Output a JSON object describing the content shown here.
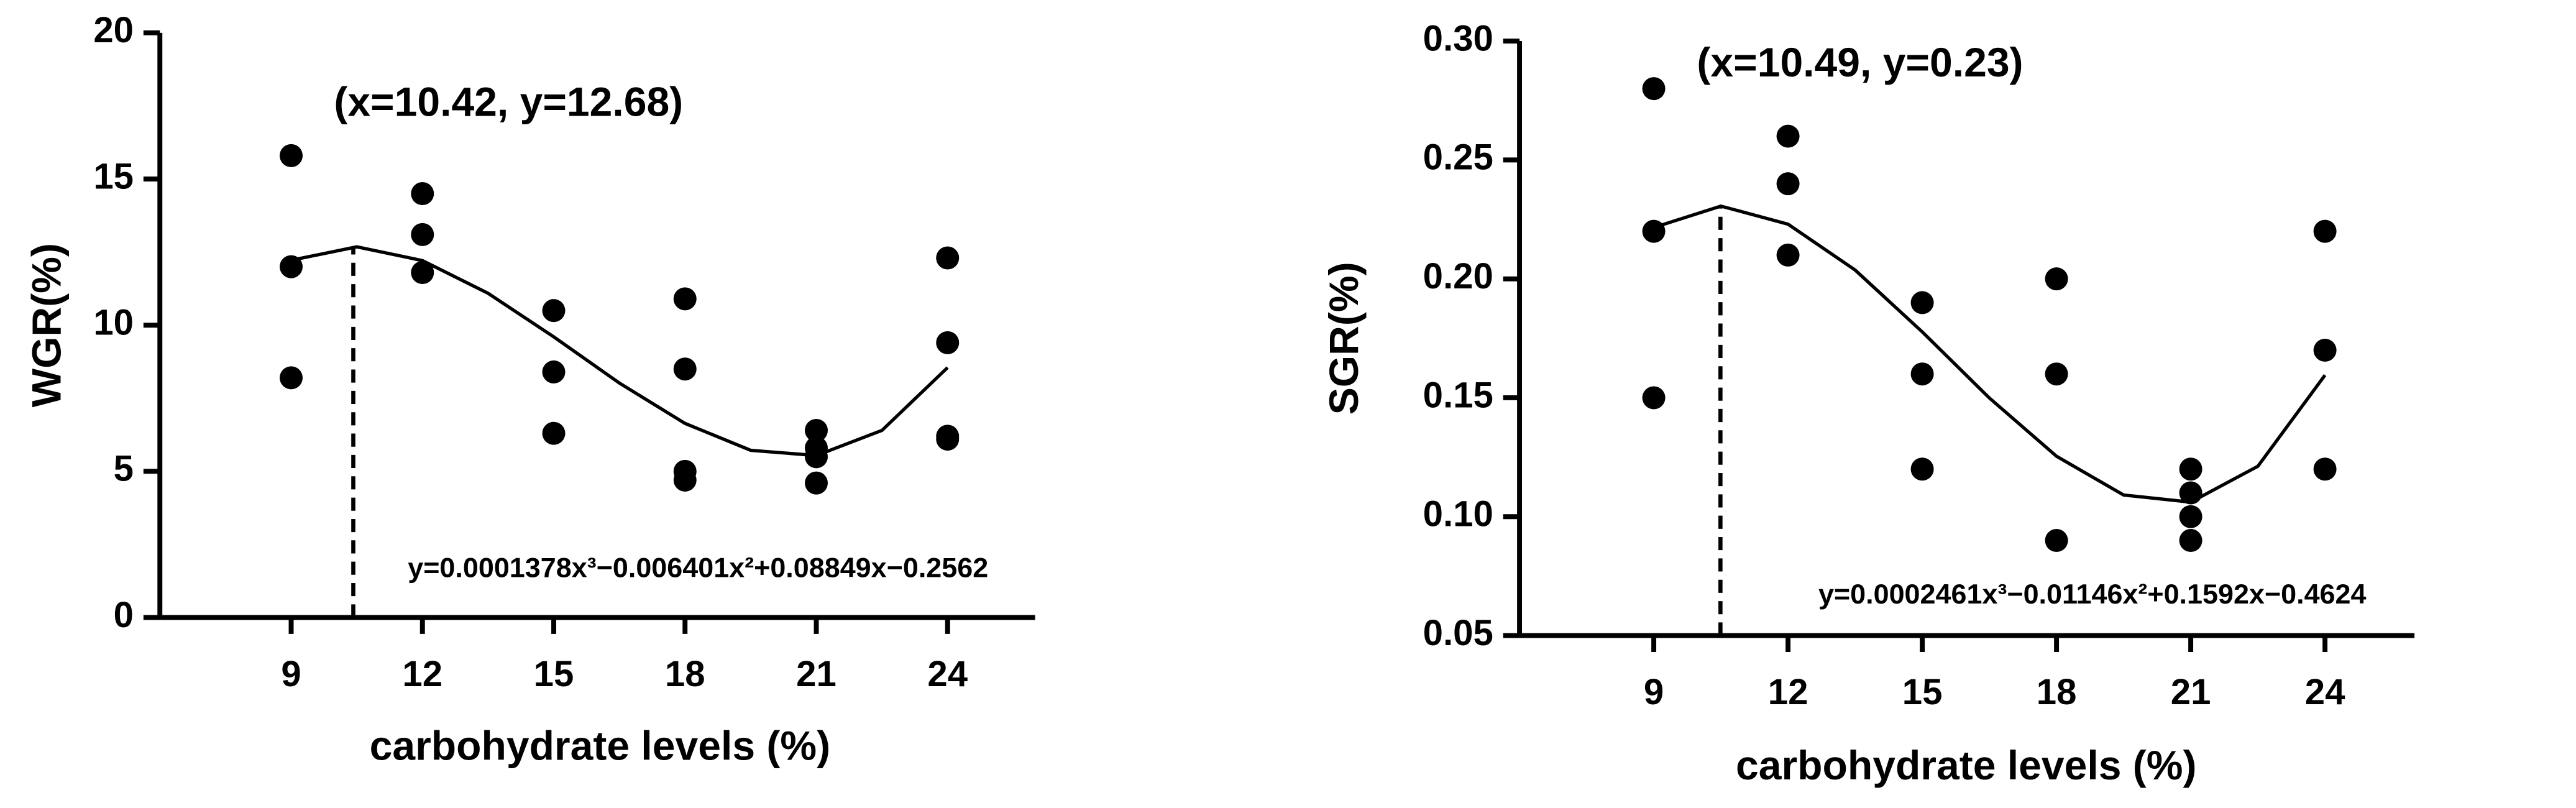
{
  "chart_data": [
    {
      "type": "scatter",
      "x_label": "carbohydrate levels (%)",
      "y_label": "WGR(%)",
      "xlim": [
        6,
        26
      ],
      "xticks": [
        9,
        12,
        15,
        18,
        21,
        24
      ],
      "ylim": [
        0,
        20
      ],
      "yticks": [
        0,
        5,
        10,
        15,
        20
      ],
      "series": [
        {
          "type": "scatter",
          "color": "#000000",
          "x": [
            9,
            9,
            9,
            12,
            12,
            12,
            15,
            15,
            15,
            18,
            18,
            18,
            18,
            21,
            21,
            21,
            21,
            24,
            24,
            24,
            24
          ],
          "values": [
            15.8,
            12.0,
            8.2,
            14.5,
            13.1,
            11.8,
            10.5,
            8.4,
            6.3,
            10.9,
            8.5,
            5.0,
            4.7,
            6.4,
            5.8,
            5.5,
            4.6,
            12.3,
            9.4,
            6.2,
            6.1
          ]
        },
        {
          "type": "line",
          "color": "#000000",
          "x": [
            9,
            10.5,
            12,
            13.5,
            15,
            16.5,
            18,
            19.5,
            21,
            22.5,
            24
          ],
          "values": [
            12.22,
            12.68,
            12.21,
            11.09,
            9.6,
            8.02,
            6.64,
            5.72,
            5.54,
            6.4,
            8.55
          ]
        }
      ],
      "peak": {
        "x": 10.42,
        "y": 12.68,
        "label": "(x=10.42, y=12.68)"
      },
      "equation": "y=0.0001378x³−0.006401x²+0.08849x−0.2562"
    },
    {
      "type": "scatter",
      "x_label": "carbohydrate levels (%)",
      "y_label": "SGR(%)",
      "xlim": [
        6,
        26
      ],
      "xticks": [
        9,
        12,
        15,
        18,
        21,
        24
      ],
      "ylim": [
        0.05,
        0.3
      ],
      "yticks": [
        0.05,
        {
          "value": 0.1,
          "label": "0.10"
        },
        0.15,
        {
          "value": 0.2,
          "label": "0.20"
        },
        0.25,
        {
          "value": 0.3,
          "label": "0.30"
        }
      ],
      "series": [
        {
          "type": "scatter",
          "color": "#000000",
          "x": [
            9,
            9,
            9,
            12,
            12,
            12,
            15,
            15,
            15,
            18,
            18,
            18,
            21,
            21,
            21,
            21,
            24,
            24,
            24
          ],
          "values": [
            0.28,
            0.22,
            0.15,
            0.26,
            0.24,
            0.21,
            0.19,
            0.16,
            0.12,
            0.2,
            0.16,
            0.09,
            0.12,
            0.11,
            0.1,
            0.09,
            0.22,
            0.17,
            0.12
          ]
        },
        {
          "type": "line",
          "color": "#000000",
          "x": [
            9,
            10.5,
            12,
            13.5,
            15,
            16.5,
            18,
            19.5,
            21,
            22.5,
            24
          ],
          "values": [
            0.2216,
            0.2306,
            0.223,
            0.2037,
            0.1777,
            0.1499,
            0.1254,
            0.1091,
            0.1061,
            0.1212,
            0.1595
          ]
        }
      ],
      "peak": {
        "x": 10.49,
        "y": 0.23,
        "label": "(x=10.49, y=0.23)"
      },
      "equation": "y=0.0002461x³−0.01146x²+0.1592x−0.4624"
    }
  ]
}
